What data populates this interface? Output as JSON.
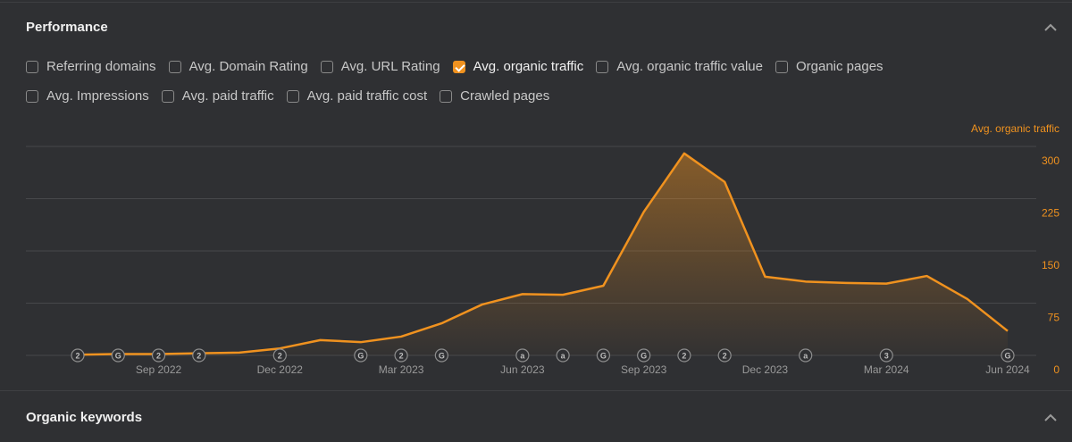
{
  "panel": {
    "title": "Performance",
    "filters": [
      [
        {
          "label": "Referring domains",
          "checked": false
        },
        {
          "label": "Avg. Domain Rating",
          "checked": false
        },
        {
          "label": "Avg. URL Rating",
          "checked": false
        },
        {
          "label": "Avg. organic traffic",
          "checked": true
        },
        {
          "label": "Avg. organic traffic value",
          "checked": false
        },
        {
          "label": "Organic pages",
          "checked": false
        }
      ],
      [
        {
          "label": "Avg. Impressions",
          "checked": false
        },
        {
          "label": "Avg. paid traffic",
          "checked": false
        },
        {
          "label": "Avg. paid traffic cost",
          "checked": false
        },
        {
          "label": "Crawled pages",
          "checked": false
        }
      ]
    ]
  },
  "chart_data": {
    "type": "line",
    "ylabel": "Avg. organic traffic",
    "color": "#f0921f",
    "area": true,
    "categories": [
      null,
      null,
      "Sep 2022",
      null,
      null,
      "Dec 2022",
      null,
      null,
      "Mar 2023",
      null,
      null,
      "Jun 2023",
      null,
      null,
      "Sep 2023",
      null,
      null,
      "Dec 2023",
      null,
      null,
      "Mar 2024",
      null,
      null,
      "Jun 2024"
    ],
    "values": [
      1,
      2,
      2,
      3,
      4,
      10,
      22,
      19,
      27,
      46,
      73,
      88,
      87,
      100,
      206,
      290,
      249,
      113,
      106,
      104,
      103,
      114,
      81,
      35
    ],
    "annotations": [
      "2",
      "G",
      "2",
      "2",
      null,
      "2",
      null,
      "G",
      "2",
      "G",
      null,
      "a",
      "a",
      "G",
      "G",
      "2",
      "2",
      null,
      "a",
      null,
      "3",
      null,
      null,
      "G"
    ],
    "ylim": [
      0,
      300
    ],
    "yticks": [
      0,
      75,
      150,
      225,
      300
    ],
    "grid": true
  },
  "next_section": {
    "title": "Organic keywords"
  }
}
